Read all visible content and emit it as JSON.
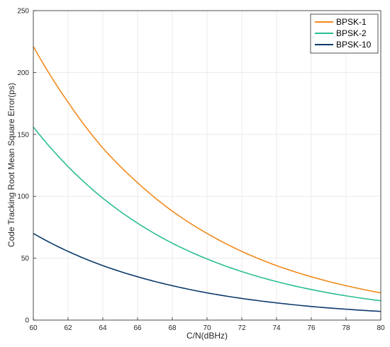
{
  "chart_data": {
    "type": "line",
    "xlabel": "C/N(dBHz)",
    "ylabel": "Code Tracking Root Mean Square Error(ps)",
    "xlim": [
      60,
      80
    ],
    "ylim": [
      0,
      250
    ],
    "xticks": [
      60,
      62,
      64,
      66,
      68,
      70,
      72,
      74,
      76,
      78,
      80
    ],
    "yticks": [
      0,
      50,
      100,
      150,
      200,
      250
    ],
    "grid": true,
    "legend_position": "top-right",
    "x": [
      60,
      62,
      64,
      66,
      68,
      70,
      72,
      74,
      76,
      78,
      80
    ],
    "series": [
      {
        "name": "BPSK-1",
        "color": "#f28a1c",
        "values": [
          221,
          176,
          139,
          111,
          88,
          70,
          55.5,
          44,
          35,
          27.8,
          22
        ]
      },
      {
        "name": "BPSK-2",
        "color": "#2bbd94",
        "values": [
          156,
          124,
          98.5,
          78.3,
          62.1,
          49.4,
          39.2,
          31.1,
          24.7,
          19.6,
          15.6
        ]
      },
      {
        "name": "BPSK-10",
        "color": "#0b3a6b",
        "values": [
          70,
          55.5,
          44,
          35,
          27.8,
          22,
          17.5,
          13.9,
          11,
          8.8,
          7
        ]
      }
    ]
  }
}
